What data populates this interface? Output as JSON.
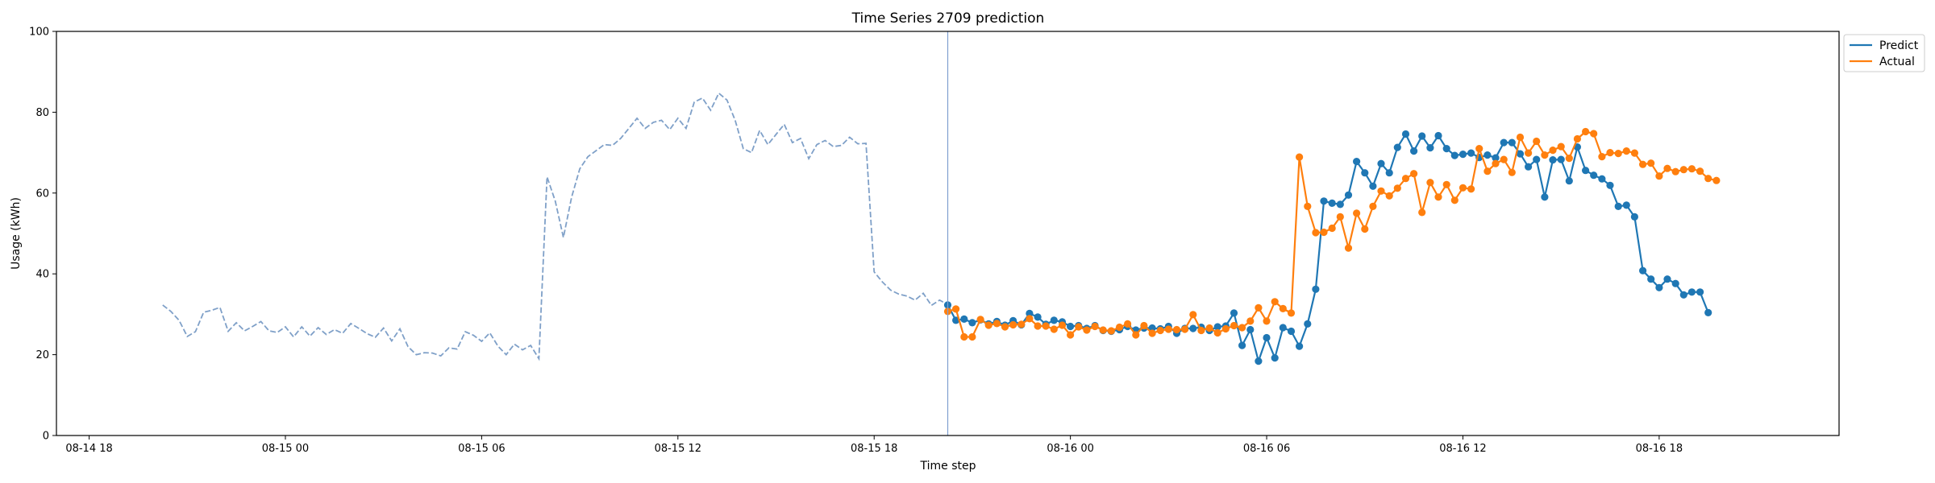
{
  "chart_data": {
    "type": "line",
    "title": "Time Series 2709 prediction",
    "xlabel": "Time step",
    "ylabel": "Usage (kWh)",
    "ylim": [
      0,
      100
    ],
    "yticks": [
      0,
      20,
      40,
      60,
      80,
      100
    ],
    "xlim": [
      "2023-08-14 17:00",
      "2023-08-16 23:30"
    ],
    "xticks": [
      {
        "t": "2023-08-14 18:00",
        "label": "08-14 18"
      },
      {
        "t": "2023-08-15 00:00",
        "label": "08-15 00"
      },
      {
        "t": "2023-08-15 06:00",
        "label": "08-15 06"
      },
      {
        "t": "2023-08-15 12:00",
        "label": "08-15 12"
      },
      {
        "t": "2023-08-15 18:00",
        "label": "08-15 18"
      },
      {
        "t": "2023-08-16 00:00",
        "label": "08-16 00"
      },
      {
        "t": "2023-08-16 06:00",
        "label": "08-16 06"
      },
      {
        "t": "2023-08-16 12:00",
        "label": "08-16 12"
      },
      {
        "t": "2023-08-16 18:00",
        "label": "08-16 18"
      }
    ],
    "grid": false,
    "legend_position": "top-right",
    "forecast_start": "2023-08-15 20:15",
    "step_minutes": 15,
    "series": [
      {
        "name": "",
        "style": "dashed",
        "color": "#7fa0c8",
        "x_start": "2023-08-14 20:15",
        "values": [
          32.3,
          30.7,
          28.5,
          24.5,
          25.7,
          30.5,
          31,
          31.7,
          25.8,
          27.9,
          25.9,
          27,
          28.2,
          25.9,
          25.5,
          26.9,
          24.4,
          26.9,
          24.6,
          26.7,
          25,
          26.2,
          25.3,
          27.7,
          26.5,
          25.2,
          24.3,
          26.6,
          23.4,
          26.4,
          22,
          20,
          20.5,
          20.4,
          19.7,
          21.7,
          21.4,
          25.7,
          24.8,
          23.3,
          25.4,
          22.1,
          20,
          22.6,
          21.2,
          22.3,
          19,
          64,
          58,
          49,
          59,
          66,
          69,
          70.5,
          72,
          71.8,
          73.5,
          76,
          78.5,
          76,
          77.5,
          78,
          75.7,
          78.5,
          76,
          82.5,
          83.5,
          80.5,
          84.7,
          83,
          78,
          71,
          70,
          75.5,
          72,
          74.5,
          77,
          72.5,
          73.5,
          68.5,
          72,
          73,
          71.5,
          71.8,
          73.8,
          72.2,
          72.3,
          40.5,
          38,
          36,
          35,
          34.5,
          33.5,
          35.2,
          32.2,
          33.5,
          32.4
        ]
      },
      {
        "name": "Predict",
        "style": "solid-markers",
        "color": "#1f77b4",
        "x_start": "2023-08-15 20:15",
        "values": [
          32.3,
          28.5,
          28.8,
          27.9,
          28.6,
          27.6,
          28.2,
          27.3,
          28.4,
          27.4,
          30.2,
          29.3,
          27.5,
          28.5,
          28.1,
          27,
          27.2,
          26.5,
          27.2,
          26,
          25.8,
          26.2,
          27,
          26.1,
          26.6,
          26.6,
          26.4,
          27,
          25.3,
          26.5,
          26.5,
          26.8,
          26,
          26.9,
          27.1,
          30.3,
          22.3,
          26.2,
          18.4,
          24.2,
          19.2,
          26.7,
          25.8,
          22.1,
          27.6,
          36.2,
          58,
          57.5,
          57.2,
          59.5,
          67.8,
          65,
          61.7,
          67.3,
          65,
          71.3,
          74.6,
          70.4,
          74.1,
          71.2,
          74.2,
          71,
          69.3,
          69.6,
          69.9,
          68.8,
          69.4,
          68.7,
          72.5,
          72.5,
          69.7,
          66.5,
          68.3,
          59,
          68.2,
          68.3,
          63,
          71.4,
          65.6,
          64.4,
          63.5,
          61.9,
          56.7,
          57,
          54.1,
          40.8,
          38.7,
          36.6,
          38.7,
          37.6,
          34.8,
          35.5,
          35.5,
          30.4
        ]
      },
      {
        "name": "Actual",
        "style": "solid-markers",
        "color": "#ff7f0e",
        "x_start": "2023-08-15 20:15",
        "values": [
          30.7,
          31.3,
          24.4,
          24.4,
          28.7,
          27.3,
          27.7,
          26.9,
          27.4,
          27.5,
          28.9,
          27.1,
          27.1,
          26.3,
          27.3,
          24.9,
          26.9,
          26.1,
          27,
          26.1,
          25.9,
          26.8,
          27.6,
          24.9,
          27.2,
          25.3,
          26,
          26.3,
          26.2,
          26.3,
          29.9,
          26,
          26.6,
          25.4,
          26.4,
          27.2,
          26.7,
          28.3,
          31.6,
          28.3,
          33.1,
          31.4,
          30.3,
          68.9,
          56.7,
          50.2,
          50.3,
          51.3,
          54.1,
          46.4,
          55,
          51.1,
          56.7,
          60.5,
          59.3,
          61.2,
          63.6,
          64.8,
          55.2,
          62.6,
          59,
          62.1,
          58.2,
          61.3,
          61,
          71,
          65.4,
          67.3,
          68.3,
          65.1,
          73.8,
          69.9,
          72.8,
          69.4,
          70.6,
          71.5,
          68.6,
          73.4,
          75.2,
          74.7,
          69,
          70,
          69.8,
          70.4,
          69.9,
          67.1,
          67.4,
          64.2,
          66.1,
          65.3,
          65.8,
          66,
          65.4,
          63.6,
          63.1
        ]
      }
    ]
  }
}
